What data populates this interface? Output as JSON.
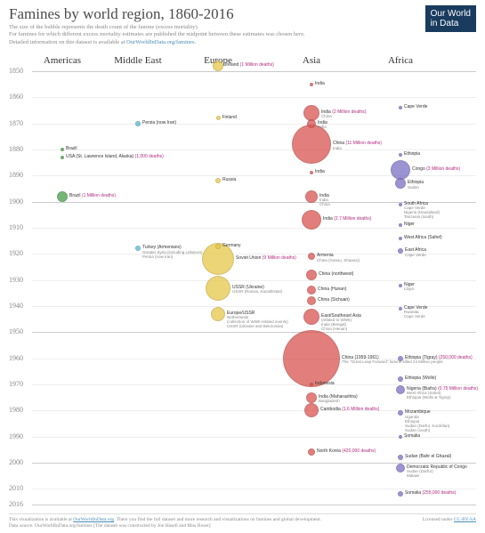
{
  "header": {
    "title": "Famines by world region, 1860-2016",
    "subtitle_line1": "The size of the bubble represents the death count of the famine (excess mortality).",
    "subtitle_line2": "For famines for which different excess mortality estimates are published the midpoint between these estimates was chosen here.",
    "subtitle_line3_prefix": "Detailed information on this dataset is available at ",
    "subtitle_link": "OurWorldInData.org/famines",
    "logo_line1": "Our World",
    "logo_line2": "in Data"
  },
  "chart": {
    "type": "bubble",
    "background_color": "#ffffff",
    "grid_color_light": "#eeeeee",
    "grid_color_heavy": "#cccccc",
    "regions": [
      {
        "name": "Americas",
        "x": 60,
        "color": "#4a9d4a"
      },
      {
        "name": "Middle East",
        "x": 145,
        "color": "#5bb5d4"
      },
      {
        "name": "Europe",
        "x": 235,
        "color": "#e6c84a"
      },
      {
        "name": "Asia",
        "x": 340,
        "color": "#d9534f"
      },
      {
        "name": "Africa",
        "x": 440,
        "color": "#7a6fc4"
      }
    ],
    "ylim": [
      1850,
      2016
    ],
    "yticks": [
      1850,
      1860,
      1870,
      1880,
      1890,
      1900,
      1910,
      1920,
      1930,
      1940,
      1950,
      1960,
      1970,
      1980,
      1990,
      2000,
      2010,
      2016
    ],
    "bubble_scale": 0.019,
    "min_radius": 1.6,
    "label_fontsize": 5,
    "title_fontsize": 17,
    "region_fontsize": 11,
    "points": [
      {
        "region": 0,
        "year": 1880,
        "r": 2,
        "label": "Brazil"
      },
      {
        "region": 0,
        "year": 1883,
        "r": 2,
        "label": "USA (St. Lawrence Island, Alaska)",
        "deaths": "(1,000 deaths)"
      },
      {
        "region": 0,
        "year": 1898,
        "r": 6,
        "label": "Brazil",
        "deaths": "(1 Million deaths)"
      },
      {
        "region": 1,
        "year": 1870,
        "r": 3,
        "label": "Persia (now Iran)"
      },
      {
        "region": 1,
        "year": 1918,
        "r": 3,
        "label": "Turkey (Armenians)",
        "sub": "Greater Syria (including Lebanon)\nPersia (now Iran)"
      },
      {
        "region": 2,
        "year": 1848,
        "r": 6,
        "label": "Ireland",
        "deaths": "(1 Million deaths)"
      },
      {
        "region": 2,
        "year": 1868,
        "r": 2.5,
        "label": "Finland"
      },
      {
        "region": 2,
        "year": 1892,
        "r": 3,
        "label": "Russia"
      },
      {
        "region": 2,
        "year": 1917,
        "r": 3,
        "label": "Germany"
      },
      {
        "region": 2,
        "year": 1922,
        "r": 18,
        "label": "Soviet Union",
        "deaths": "(9 Million deaths)"
      },
      {
        "region": 2,
        "year": 1933,
        "r": 14,
        "label": "USSR (Ukraine)",
        "sub": "USSR (Russia, Kazakhstan)"
      },
      {
        "region": 2,
        "year": 1943,
        "r": 8,
        "label": "Europe/USSR",
        "sub": "Netherlands\n(collection of WWII-related events)\nUSSR (Ukraine and Belorussia)"
      },
      {
        "region": 3,
        "year": 1855,
        "r": 2,
        "label": "India"
      },
      {
        "region": 3,
        "year": 1866,
        "r": 9,
        "label": "India",
        "deaths": "(2 Million deaths)",
        "sub": "China"
      },
      {
        "region": 3,
        "year": 1870,
        "r": 5,
        "label": "India",
        "sub": "India"
      },
      {
        "region": 3,
        "year": 1878,
        "r": 22,
        "label": "China",
        "deaths": "(11 Million deaths)",
        "sub": "India"
      },
      {
        "region": 3,
        "year": 1889,
        "r": 2,
        "label": "India"
      },
      {
        "region": 3,
        "year": 1898,
        "r": 7,
        "label": "India",
        "sub": "India\nChina"
      },
      {
        "region": 3,
        "year": 1907,
        "r": 11,
        "label": "India",
        "deaths": "(2.7 Million deaths)"
      },
      {
        "region": 3,
        "year": 1921,
        "r": 4,
        "label": "Armenia",
        "sub": "China (Gansu, Shaanxi)"
      },
      {
        "region": 3,
        "year": 1928,
        "r": 6,
        "label": "China (northwest)"
      },
      {
        "region": 3,
        "year": 1934,
        "r": 5,
        "label": "China (Hunan)"
      },
      {
        "region": 3,
        "year": 1938,
        "r": 5,
        "label": "China (Sichuan)"
      },
      {
        "region": 3,
        "year": 1944,
        "r": 9,
        "label": "East/Southeast Asia",
        "sub": "(related to WWII)\nIndia (Bengal)\nChina (Henan)"
      },
      {
        "region": 3,
        "year": 1960,
        "r": 32,
        "label": "China (1959-1961)",
        "sub": "The \"Great Leap Forward\" famine killed 24 Million people"
      },
      {
        "region": 3,
        "year": 1970,
        "r": 2,
        "label": "Indonesia"
      },
      {
        "region": 3,
        "year": 1975,
        "r": 6,
        "label": "India (Maharashtra)",
        "sub": "Bangladesh"
      },
      {
        "region": 3,
        "year": 1980,
        "r": 8,
        "label": "Cambodia",
        "deaths": "(1.6 Million deaths)"
      },
      {
        "region": 3,
        "year": 1996,
        "r": 4,
        "label": "North Korea",
        "deaths": "(420,000 deaths)"
      },
      {
        "region": 4,
        "year": 1864,
        "r": 2,
        "label": "Cape Verde"
      },
      {
        "region": 4,
        "year": 1882,
        "r": 2,
        "label": "Ethiopia"
      },
      {
        "region": 4,
        "year": 1888,
        "r": 11,
        "label": "Congo",
        "deaths": "(3 Million deaths)"
      },
      {
        "region": 4,
        "year": 1893,
        "r": 6,
        "label": "Ethiopia",
        "sub": "Sudan"
      },
      {
        "region": 4,
        "year": 1901,
        "r": 2,
        "label": "South Africa",
        "sub": "Cape Verde\nNigeria (Hausaland)\nTanzania (south)"
      },
      {
        "region": 4,
        "year": 1909,
        "r": 2,
        "label": "Niger"
      },
      {
        "region": 4,
        "year": 1914,
        "r": 2,
        "label": "West Africa (Sahel)"
      },
      {
        "region": 4,
        "year": 1919,
        "r": 3,
        "label": "East Africa",
        "sub": "Cape Verde"
      },
      {
        "region": 4,
        "year": 1932,
        "r": 2,
        "label": "Niger",
        "sub": "Libya"
      },
      {
        "region": 4,
        "year": 1941,
        "r": 2,
        "label": "Cape Verde",
        "sub": "Rwanda\nCape Verde"
      },
      {
        "region": 4,
        "year": 1960,
        "r": 3,
        "label": "Ethiopia (Tigray)",
        "deaths": "(250,000 deaths)"
      },
      {
        "region": 4,
        "year": 1968,
        "r": 3,
        "label": "Ethiopia (Wollo)"
      },
      {
        "region": 4,
        "year": 1972,
        "r": 5,
        "label": "Nigeria (Biafra)",
        "deaths": "(0.75 Million deaths)",
        "sub": "West Africa (Sahel)\nEthiopia (Wollo & Tigray)"
      },
      {
        "region": 4,
        "year": 1981,
        "r": 3,
        "label": "Mozambique",
        "sub": "Uganda\nEthiopia\nSudan (Darfur, Kordofan)\nSudan (south)"
      },
      {
        "region": 4,
        "year": 1990,
        "r": 2,
        "label": "Somalia"
      },
      {
        "region": 4,
        "year": 1998,
        "r": 3,
        "label": "Sudan (Bahr el Ghazal)"
      },
      {
        "region": 4,
        "year": 2002,
        "r": 5,
        "label": "Democratic Republic of Congo",
        "sub": "Sudan (Darfur)\nMalawi"
      },
      {
        "region": 4,
        "year": 2012,
        "r": 3,
        "label": "Somalia",
        "deaths": "(255,000 deaths)"
      }
    ]
  },
  "footer": {
    "line1_prefix": "This visualization is available at ",
    "link1": "OurWorldInData.org",
    "line1_suffix": ". There you find the full dataset and more research and visualizations on famines and global development.",
    "line2": "Data source: OurWorldInData.org/famines [The dataset was constructed by Joe Hasell and Max Roser]",
    "license_prefix": "Licensed under ",
    "license_link": "CC-BY-SA"
  }
}
